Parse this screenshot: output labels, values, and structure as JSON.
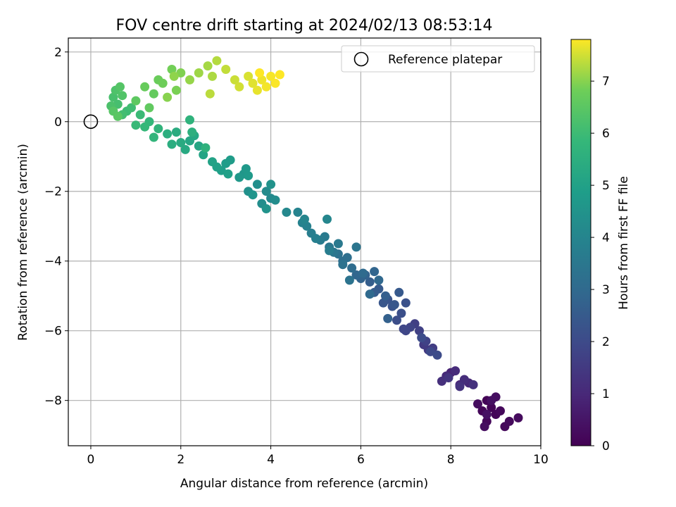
{
  "chart_data": {
    "type": "scatter",
    "title": "FOV centre drift starting at 2024/02/13 08:53:14",
    "xlabel": "Angular distance from reference (arcmin)",
    "ylabel": "Rotation from reference (arcmin)",
    "xlim": [
      -0.5,
      10
    ],
    "ylim": [
      -9.3,
      2.4
    ],
    "xticks": [
      0,
      2,
      4,
      6,
      8,
      10
    ],
    "yticks": [
      2,
      0,
      -2,
      -4,
      -6,
      -8
    ],
    "grid": true,
    "legend": {
      "placement": "top-right",
      "entries": [
        "Reference platepar"
      ]
    },
    "colorbar": {
      "label": "Hours from first FF file",
      "colormap": "viridis",
      "range": [
        0,
        7.8
      ],
      "ticks": [
        0,
        1,
        2,
        3,
        4,
        5,
        6,
        7
      ]
    },
    "reference_point": {
      "x": 0,
      "y": 0,
      "label": "Reference platepar"
    },
    "series": [
      {
        "name": "",
        "color_by": "hours",
        "points": [
          [
            8.8,
            -8.0,
            0.05
          ],
          [
            8.9,
            -8.2,
            0.08
          ],
          [
            9.0,
            -8.4,
            0.1
          ],
          [
            8.7,
            -8.3,
            0.12
          ],
          [
            8.8,
            -8.6,
            0.15
          ],
          [
            9.1,
            -8.3,
            0.18
          ],
          [
            9.2,
            -8.75,
            0.2
          ],
          [
            9.3,
            -8.6,
            0.22
          ],
          [
            9.5,
            -8.5,
            0.25
          ],
          [
            8.6,
            -8.1,
            0.28
          ],
          [
            8.75,
            -8.75,
            0.3
          ],
          [
            9.0,
            -7.9,
            0.33
          ],
          [
            8.9,
            -8.0,
            0.36
          ],
          [
            8.8,
            -8.4,
            0.4
          ],
          [
            8.0,
            -7.2,
            0.9
          ],
          [
            8.2,
            -7.55,
            0.95
          ],
          [
            8.4,
            -7.5,
            1.0
          ],
          [
            7.9,
            -7.3,
            1.05
          ],
          [
            8.1,
            -7.15,
            1.1
          ],
          [
            8.3,
            -7.4,
            1.15
          ],
          [
            7.8,
            -7.45,
            1.2
          ],
          [
            8.5,
            -7.55,
            1.25
          ],
          [
            8.2,
            -7.6,
            1.3
          ],
          [
            7.95,
            -7.35,
            1.35
          ],
          [
            7.5,
            -6.55,
            1.5
          ],
          [
            7.4,
            -6.4,
            1.55
          ],
          [
            7.6,
            -6.5,
            1.6
          ],
          [
            7.2,
            -5.8,
            1.65
          ],
          [
            7.3,
            -6.0,
            1.7
          ],
          [
            7.45,
            -6.3,
            1.75
          ],
          [
            7.1,
            -5.9,
            1.8
          ],
          [
            7.0,
            -6.0,
            1.85
          ],
          [
            6.95,
            -5.95,
            1.9
          ],
          [
            7.55,
            -6.6,
            1.95
          ],
          [
            7.7,
            -6.7,
            2.0
          ],
          [
            7.35,
            -6.2,
            2.05
          ],
          [
            6.8,
            -5.7,
            2.1
          ],
          [
            6.9,
            -5.5,
            2.15
          ],
          [
            7.0,
            -5.2,
            2.2
          ],
          [
            6.7,
            -5.3,
            2.25
          ],
          [
            6.6,
            -5.1,
            2.3
          ],
          [
            6.5,
            -5.2,
            2.35
          ],
          [
            6.75,
            -5.25,
            2.4
          ],
          [
            6.85,
            -4.9,
            2.45
          ],
          [
            6.4,
            -4.8,
            2.5
          ],
          [
            6.3,
            -4.9,
            2.55
          ],
          [
            6.2,
            -4.6,
            2.6
          ],
          [
            6.55,
            -5.0,
            2.65
          ],
          [
            6.6,
            -5.65,
            2.7
          ],
          [
            6.1,
            -4.4,
            2.75
          ],
          [
            6.0,
            -4.5,
            2.8
          ],
          [
            6.3,
            -4.3,
            2.85
          ],
          [
            5.9,
            -4.4,
            2.9
          ],
          [
            6.4,
            -4.55,
            2.95
          ],
          [
            6.2,
            -4.95,
            3.0
          ],
          [
            6.05,
            -4.35,
            3.05
          ],
          [
            5.8,
            -4.2,
            3.1
          ],
          [
            5.6,
            -4.0,
            3.15
          ],
          [
            5.7,
            -3.9,
            3.2
          ],
          [
            5.5,
            -3.8,
            3.25
          ],
          [
            5.6,
            -4.1,
            3.3
          ],
          [
            5.75,
            -4.55,
            3.35
          ],
          [
            5.9,
            -3.6,
            3.4
          ],
          [
            5.4,
            -3.75,
            3.45
          ],
          [
            5.3,
            -3.6,
            3.5
          ],
          [
            5.5,
            -3.5,
            3.55
          ],
          [
            5.2,
            -3.3,
            3.6
          ],
          [
            5.1,
            -3.4,
            3.65
          ],
          [
            5.3,
            -3.7,
            3.7
          ],
          [
            4.9,
            -3.2,
            3.75
          ],
          [
            5.0,
            -3.35,
            3.8
          ],
          [
            4.8,
            -3.0,
            3.85
          ],
          [
            4.7,
            -2.9,
            3.9
          ],
          [
            4.6,
            -2.6,
            3.95
          ],
          [
            4.75,
            -2.8,
            4.0
          ],
          [
            5.25,
            -2.8,
            4.05
          ],
          [
            4.35,
            -2.6,
            4.1
          ],
          [
            4.0,
            -2.2,
            4.15
          ],
          [
            3.9,
            -2.0,
            4.2
          ],
          [
            4.1,
            -2.25,
            4.25
          ],
          [
            3.8,
            -2.35,
            4.3
          ],
          [
            3.7,
            -1.8,
            4.35
          ],
          [
            3.5,
            -2.0,
            4.4
          ],
          [
            4.0,
            -1.8,
            4.45
          ],
          [
            3.9,
            -2.5,
            4.5
          ],
          [
            3.6,
            -2.1,
            4.55
          ],
          [
            3.4,
            -1.5,
            4.6
          ],
          [
            3.3,
            -1.6,
            4.65
          ],
          [
            3.45,
            -1.35,
            4.7
          ],
          [
            3.5,
            -1.55,
            4.75
          ],
          [
            3.1,
            -1.1,
            4.8
          ],
          [
            3.0,
            -1.2,
            4.85
          ],
          [
            2.9,
            -1.4,
            4.9
          ],
          [
            3.05,
            -1.5,
            4.95
          ],
          [
            2.8,
            -1.3,
            5.0
          ],
          [
            2.7,
            -1.15,
            5.05
          ],
          [
            2.5,
            -0.95,
            5.1
          ],
          [
            2.4,
            -0.7,
            5.15
          ],
          [
            2.2,
            -0.55,
            5.2
          ],
          [
            2.3,
            -0.4,
            5.25
          ],
          [
            2.1,
            -0.8,
            5.3
          ],
          [
            2.0,
            -0.6,
            5.35
          ],
          [
            1.9,
            -0.3,
            5.4
          ],
          [
            1.8,
            -0.65,
            5.45
          ],
          [
            1.7,
            -0.35,
            5.5
          ],
          [
            2.25,
            -0.3,
            5.55
          ],
          [
            2.55,
            -0.75,
            5.6
          ],
          [
            2.2,
            0.05,
            5.65
          ],
          [
            1.5,
            -0.2,
            5.7
          ],
          [
            1.4,
            -0.45,
            5.75
          ],
          [
            1.3,
            0.0,
            5.8
          ],
          [
            1.2,
            -0.15,
            5.85
          ],
          [
            1.0,
            -0.1,
            5.9
          ],
          [
            1.1,
            0.2,
            5.95
          ],
          [
            0.8,
            0.3,
            6.0
          ],
          [
            0.9,
            0.4,
            6.05
          ],
          [
            0.7,
            0.2,
            6.1
          ],
          [
            0.6,
            0.5,
            6.15
          ],
          [
            0.5,
            0.7,
            6.2
          ],
          [
            0.45,
            0.45,
            6.25
          ],
          [
            0.55,
            0.9,
            6.3
          ],
          [
            0.7,
            0.75,
            6.35
          ],
          [
            0.65,
            1.0,
            6.4
          ],
          [
            0.5,
            0.3,
            6.45
          ],
          [
            0.6,
            0.15,
            6.5
          ],
          [
            1.0,
            0.6,
            6.55
          ],
          [
            1.3,
            0.4,
            6.6
          ],
          [
            1.4,
            0.8,
            6.65
          ],
          [
            1.2,
            1.0,
            6.7
          ],
          [
            1.5,
            1.2,
            6.75
          ],
          [
            1.6,
            1.1,
            6.8
          ],
          [
            1.8,
            1.5,
            6.85
          ],
          [
            1.9,
            0.9,
            6.9
          ],
          [
            2.0,
            1.4,
            6.95
          ],
          [
            1.7,
            0.7,
            7.0
          ],
          [
            1.85,
            1.3,
            7.05
          ],
          [
            2.2,
            1.2,
            7.1
          ],
          [
            2.4,
            1.4,
            7.15
          ],
          [
            2.6,
            1.6,
            7.2
          ],
          [
            2.7,
            1.3,
            7.25
          ],
          [
            2.8,
            1.75,
            7.3
          ],
          [
            2.65,
            0.8,
            7.35
          ],
          [
            3.0,
            1.5,
            7.4
          ],
          [
            3.2,
            1.2,
            7.45
          ],
          [
            3.3,
            1.0,
            7.5
          ],
          [
            3.5,
            1.3,
            7.55
          ],
          [
            3.6,
            1.1,
            7.6
          ],
          [
            3.7,
            0.9,
            7.65
          ],
          [
            3.8,
            1.2,
            7.7
          ],
          [
            3.9,
            1.0,
            7.73
          ],
          [
            4.0,
            1.3,
            7.75
          ],
          [
            4.1,
            1.1,
            7.78
          ],
          [
            3.75,
            1.4,
            7.8
          ],
          [
            4.2,
            1.35,
            7.8
          ]
        ]
      }
    ]
  }
}
